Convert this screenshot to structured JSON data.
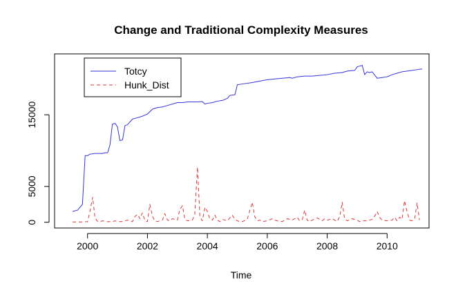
{
  "chart_data": {
    "type": "line",
    "title": "Change and Traditional Complexity Measures",
    "xlabel": "Time",
    "ylabel": "",
    "xlim": [
      1998.9,
      2011.4
    ],
    "ylim": [
      -800,
      23500
    ],
    "x_ticks": [
      2000,
      2002,
      2004,
      2006,
      2008,
      2010
    ],
    "x_tick_labels": [
      "2000",
      "2002",
      "2004",
      "2006",
      "2008",
      "2010"
    ],
    "y_ticks": [
      0,
      5000,
      15000
    ],
    "y_tick_labels": [
      "0",
      "5000",
      "15000"
    ],
    "grid": false,
    "legend": "top-left",
    "series": [
      {
        "name": "Totcy",
        "color": "#3333dd",
        "style": "solid",
        "x": [
          1999.5,
          1999.67,
          1999.83,
          1999.92,
          2000.0,
          2000.08,
          2000.25,
          2000.42,
          2000.5,
          2000.58,
          2000.67,
          2000.75,
          2000.83,
          2000.92,
          2001.0,
          2001.08,
          2001.17,
          2001.25,
          2001.33,
          2001.5,
          2001.67,
          2001.83,
          2002.0,
          2002.17,
          2002.33,
          2002.5,
          2002.67,
          2002.83,
          2003.0,
          2003.17,
          2003.33,
          2003.5,
          2003.67,
          2003.83,
          2003.92,
          2004.0,
          2004.17,
          2004.33,
          2004.5,
          2004.67,
          2004.75,
          2004.92,
          2005.0,
          2005.17,
          2005.5,
          2005.75,
          2006.0,
          2006.25,
          2006.5,
          2006.75,
          2006.83,
          2007.0,
          2007.25,
          2007.5,
          2007.75,
          2008.0,
          2008.25,
          2008.5,
          2008.67,
          2008.92,
          2009.0,
          2009.17,
          2009.25,
          2009.33,
          2009.42,
          2009.5,
          2009.67,
          2009.83,
          2010.0,
          2010.17,
          2010.33,
          2010.5,
          2010.67,
          2010.83,
          2011.0,
          2011.17
        ],
        "values": [
          1500,
          1700,
          2500,
          9300,
          9300,
          9500,
          9600,
          9600,
          9600,
          9700,
          9700,
          10800,
          13700,
          13800,
          13300,
          11400,
          11500,
          13500,
          13600,
          14400,
          14600,
          14800,
          15100,
          15800,
          16000,
          16100,
          16300,
          16500,
          16700,
          16700,
          16800,
          16800,
          16800,
          16850,
          16500,
          16600,
          16700,
          16900,
          17000,
          17300,
          17700,
          17800,
          19200,
          19300,
          19500,
          19700,
          19900,
          20000,
          20100,
          20200,
          20100,
          20300,
          20400,
          20400,
          20500,
          20600,
          20800,
          20900,
          21100,
          21200,
          21700,
          21900,
          20600,
          21000,
          20900,
          21000,
          20100,
          20200,
          20300,
          20600,
          20800,
          21000,
          21100,
          21200,
          21300,
          21400
        ]
      },
      {
        "name": "Hunk_Dist",
        "color": "#dd3333",
        "style": "dashed",
        "x": [
          1999.5,
          1999.67,
          1999.83,
          2000.0,
          2000.08,
          2000.17,
          2000.25,
          2000.33,
          2000.42,
          2000.5,
          2000.67,
          2000.83,
          2000.92,
          2001.0,
          2001.17,
          2001.33,
          2001.5,
          2001.58,
          2001.67,
          2001.75,
          2001.83,
          2001.92,
          2002.0,
          2002.08,
          2002.17,
          2002.25,
          2002.33,
          2002.5,
          2002.58,
          2002.67,
          2002.75,
          2002.83,
          2003.0,
          2003.08,
          2003.17,
          2003.25,
          2003.33,
          2003.5,
          2003.58,
          2003.67,
          2003.75,
          2003.83,
          2003.92,
          2004.0,
          2004.08,
          2004.17,
          2004.25,
          2004.33,
          2004.42,
          2004.5,
          2004.67,
          2004.83,
          2004.92,
          2005.0,
          2005.08,
          2005.17,
          2005.33,
          2005.5,
          2005.58,
          2005.67,
          2005.75,
          2005.83,
          2006.0,
          2006.17,
          2006.25,
          2006.33,
          2006.5,
          2006.67,
          2006.83,
          2007.0,
          2007.08,
          2007.17,
          2007.25,
          2007.33,
          2007.42,
          2007.5,
          2007.67,
          2007.83,
          2007.92,
          2008.0,
          2008.17,
          2008.33,
          2008.42,
          2008.5,
          2008.58,
          2008.67,
          2008.83,
          2009.0,
          2009.08,
          2009.17,
          2009.33,
          2009.5,
          2009.58,
          2009.67,
          2009.75,
          2009.83,
          2010.0,
          2010.17,
          2010.25,
          2010.33,
          2010.42,
          2010.5,
          2010.58,
          2010.67,
          2010.75,
          2010.83,
          2010.92,
          2011.0,
          2011.08
        ],
        "values": [
          50,
          50,
          50,
          80,
          1500,
          3500,
          600,
          150,
          80,
          200,
          80,
          100,
          200,
          80,
          100,
          300,
          100,
          800,
          1100,
          500,
          1300,
          200,
          100,
          2500,
          800,
          200,
          100,
          300,
          1200,
          300,
          200,
          500,
          300,
          1800,
          2300,
          400,
          200,
          300,
          1100,
          7700,
          800,
          200,
          2100,
          1500,
          500,
          300,
          1000,
          300,
          100,
          400,
          200,
          1000,
          400,
          200,
          100,
          100,
          400,
          2800,
          800,
          200,
          300,
          100,
          200,
          500,
          300,
          200,
          100,
          500,
          300,
          700,
          200,
          400,
          1700,
          300,
          100,
          300,
          600,
          200,
          500,
          300,
          500,
          100,
          800,
          2800,
          500,
          200,
          500,
          300,
          100,
          200,
          200,
          400,
          800,
          1500,
          700,
          300,
          200,
          300,
          700,
          200,
          700,
          400,
          3000,
          1400,
          300,
          200,
          500,
          2700,
          300
        ]
      }
    ]
  }
}
